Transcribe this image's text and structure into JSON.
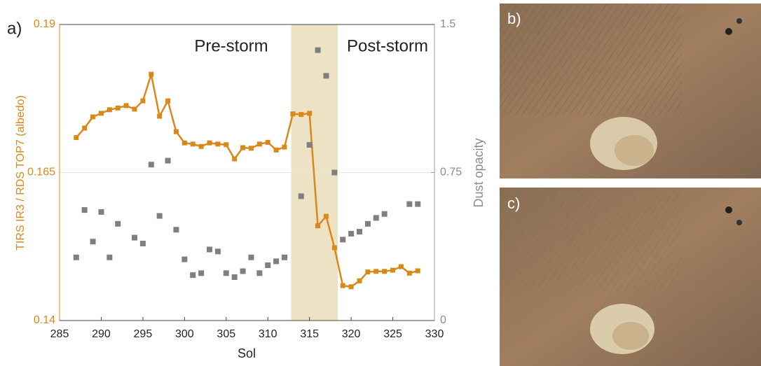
{
  "chart_data": {
    "type": "line",
    "panel_label": "a)",
    "xlabel": "Sol",
    "ylabel": "TIRS IR3 / RDS TOP7 (albedo)",
    "y2label": "Dust opacity",
    "annotations": [
      "Pre-storm",
      "Post-storm"
    ],
    "xlim": [
      285,
      330
    ],
    "xticks": [
      285,
      290,
      295,
      300,
      305,
      310,
      315,
      320,
      325,
      330
    ],
    "ylim": [
      0.14,
      0.19
    ],
    "yticks": [
      0.14,
      0.165,
      0.19
    ],
    "y2lim": [
      0,
      1.5
    ],
    "y2ticks": [
      0,
      0.75,
      1.5
    ],
    "shade": [
      312.8,
      318.4
    ],
    "shade_color": "#ede2c3",
    "series": [
      {
        "color": "#d9881a",
        "x": [
          287,
          288,
          289,
          290,
          291,
          292,
          293,
          294,
          295,
          296,
          297,
          298,
          299,
          300,
          301,
          302,
          303,
          304,
          305,
          306,
          307,
          308,
          309,
          310,
          311,
          312,
          313,
          314,
          315,
          316,
          317,
          318,
          319,
          320,
          321,
          322,
          323,
          324,
          325,
          326,
          327,
          328
        ],
        "values": [
          0.1709,
          0.1725,
          0.1744,
          0.175,
          0.1756,
          0.1759,
          0.1763,
          0.1757,
          0.1771,
          0.1816,
          0.1745,
          0.1771,
          0.1719,
          0.17,
          0.1698,
          0.1694,
          0.17,
          0.1698,
          0.1697,
          0.1673,
          0.1692,
          0.1691,
          0.1698,
          0.1701,
          0.1688,
          0.1693,
          0.1749,
          0.1748,
          0.175,
          0.156,
          0.1576,
          0.1523,
          0.1459,
          0.1457,
          0.1467,
          0.1482,
          0.1483,
          0.1483,
          0.1485,
          0.1491,
          0.148,
          0.1484
        ]
      },
      {
        "color": "#7f7f7f",
        "axis": "y2",
        "x": [
          287,
          288,
          289,
          290,
          291,
          292,
          294,
          295,
          296,
          297,
          298,
          299,
          300,
          301,
          302,
          303,
          304,
          305,
          306,
          307,
          308,
          309,
          310,
          311,
          312,
          314,
          315,
          316,
          317,
          318,
          319,
          320,
          321,
          322,
          323,
          324,
          327,
          328
        ],
        "values": [
          0.32,
          0.56,
          0.4,
          0.55,
          0.32,
          0.49,
          0.42,
          0.39,
          0.79,
          0.53,
          0.81,
          0.46,
          0.31,
          0.23,
          0.24,
          0.36,
          0.35,
          0.24,
          0.22,
          0.25,
          0.32,
          0.24,
          0.28,
          0.3,
          0.32,
          0.63,
          0.89,
          1.37,
          1.24,
          0.75,
          0.41,
          0.44,
          0.45,
          0.49,
          0.52,
          0.54,
          0.59,
          0.59
        ]
      }
    ]
  },
  "panels": [
    {
      "label": "b)"
    },
    {
      "label": "c)"
    }
  ]
}
